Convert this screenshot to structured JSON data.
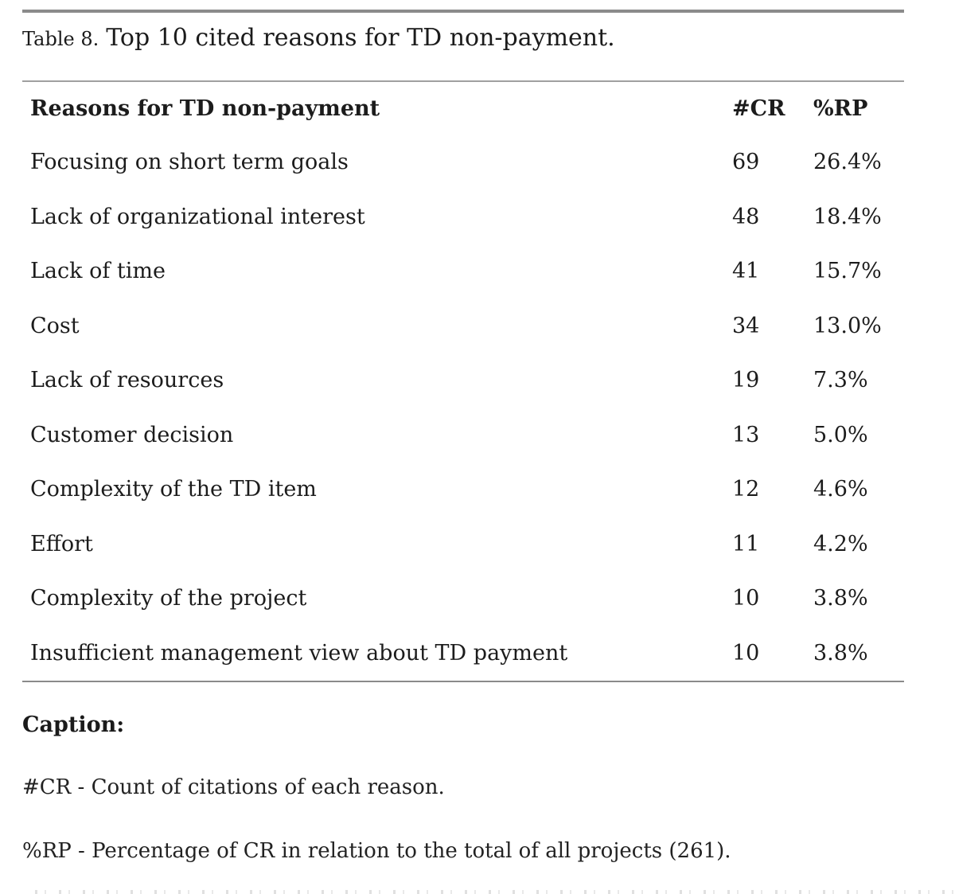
{
  "page": {
    "title_label": "Table 8.",
    "title_text": "Top 10 cited reasons for TD non-payment."
  },
  "table": {
    "headers": [
      "Reasons for TD non-payment",
      "#CR",
      "%RP"
    ],
    "rows": [
      {
        "reason": "Focusing on short term goals",
        "cr": "69",
        "rp": "26.4%"
      },
      {
        "reason": "Lack of organizational interest",
        "cr": "48",
        "rp": "18.4%"
      },
      {
        "reason": "Lack of time",
        "cr": "41",
        "rp": "15.7%"
      },
      {
        "reason": "Cost",
        "cr": "34",
        "rp": "13.0%"
      },
      {
        "reason": "Lack of resources",
        "cr": "19",
        "rp": "7.3%"
      },
      {
        "reason": "Customer decision",
        "cr": "13",
        "rp": "5.0%"
      },
      {
        "reason": "Complexity of the TD item",
        "cr": "12",
        "rp": "4.6%"
      },
      {
        "reason": "Effort",
        "cr": "11",
        "rp": "4.2%"
      },
      {
        "reason": "Complexity of the project",
        "cr": "10",
        "rp": "3.8%"
      },
      {
        "reason": "Insufficient management view about TD payment",
        "cr": "10",
        "rp": "3.8%"
      }
    ]
  },
  "caption": {
    "heading": "Caption:",
    "lines": [
      "#CR - Count of citations of each reason.",
      "%RP - Percentage of CR in relation to the total of all projects (261)."
    ]
  },
  "colors": {
    "text": "#1c1c1c",
    "rule_heavy": "#8b8b8b",
    "rule_light": "#a0a0a0",
    "background": "#ffffff"
  }
}
